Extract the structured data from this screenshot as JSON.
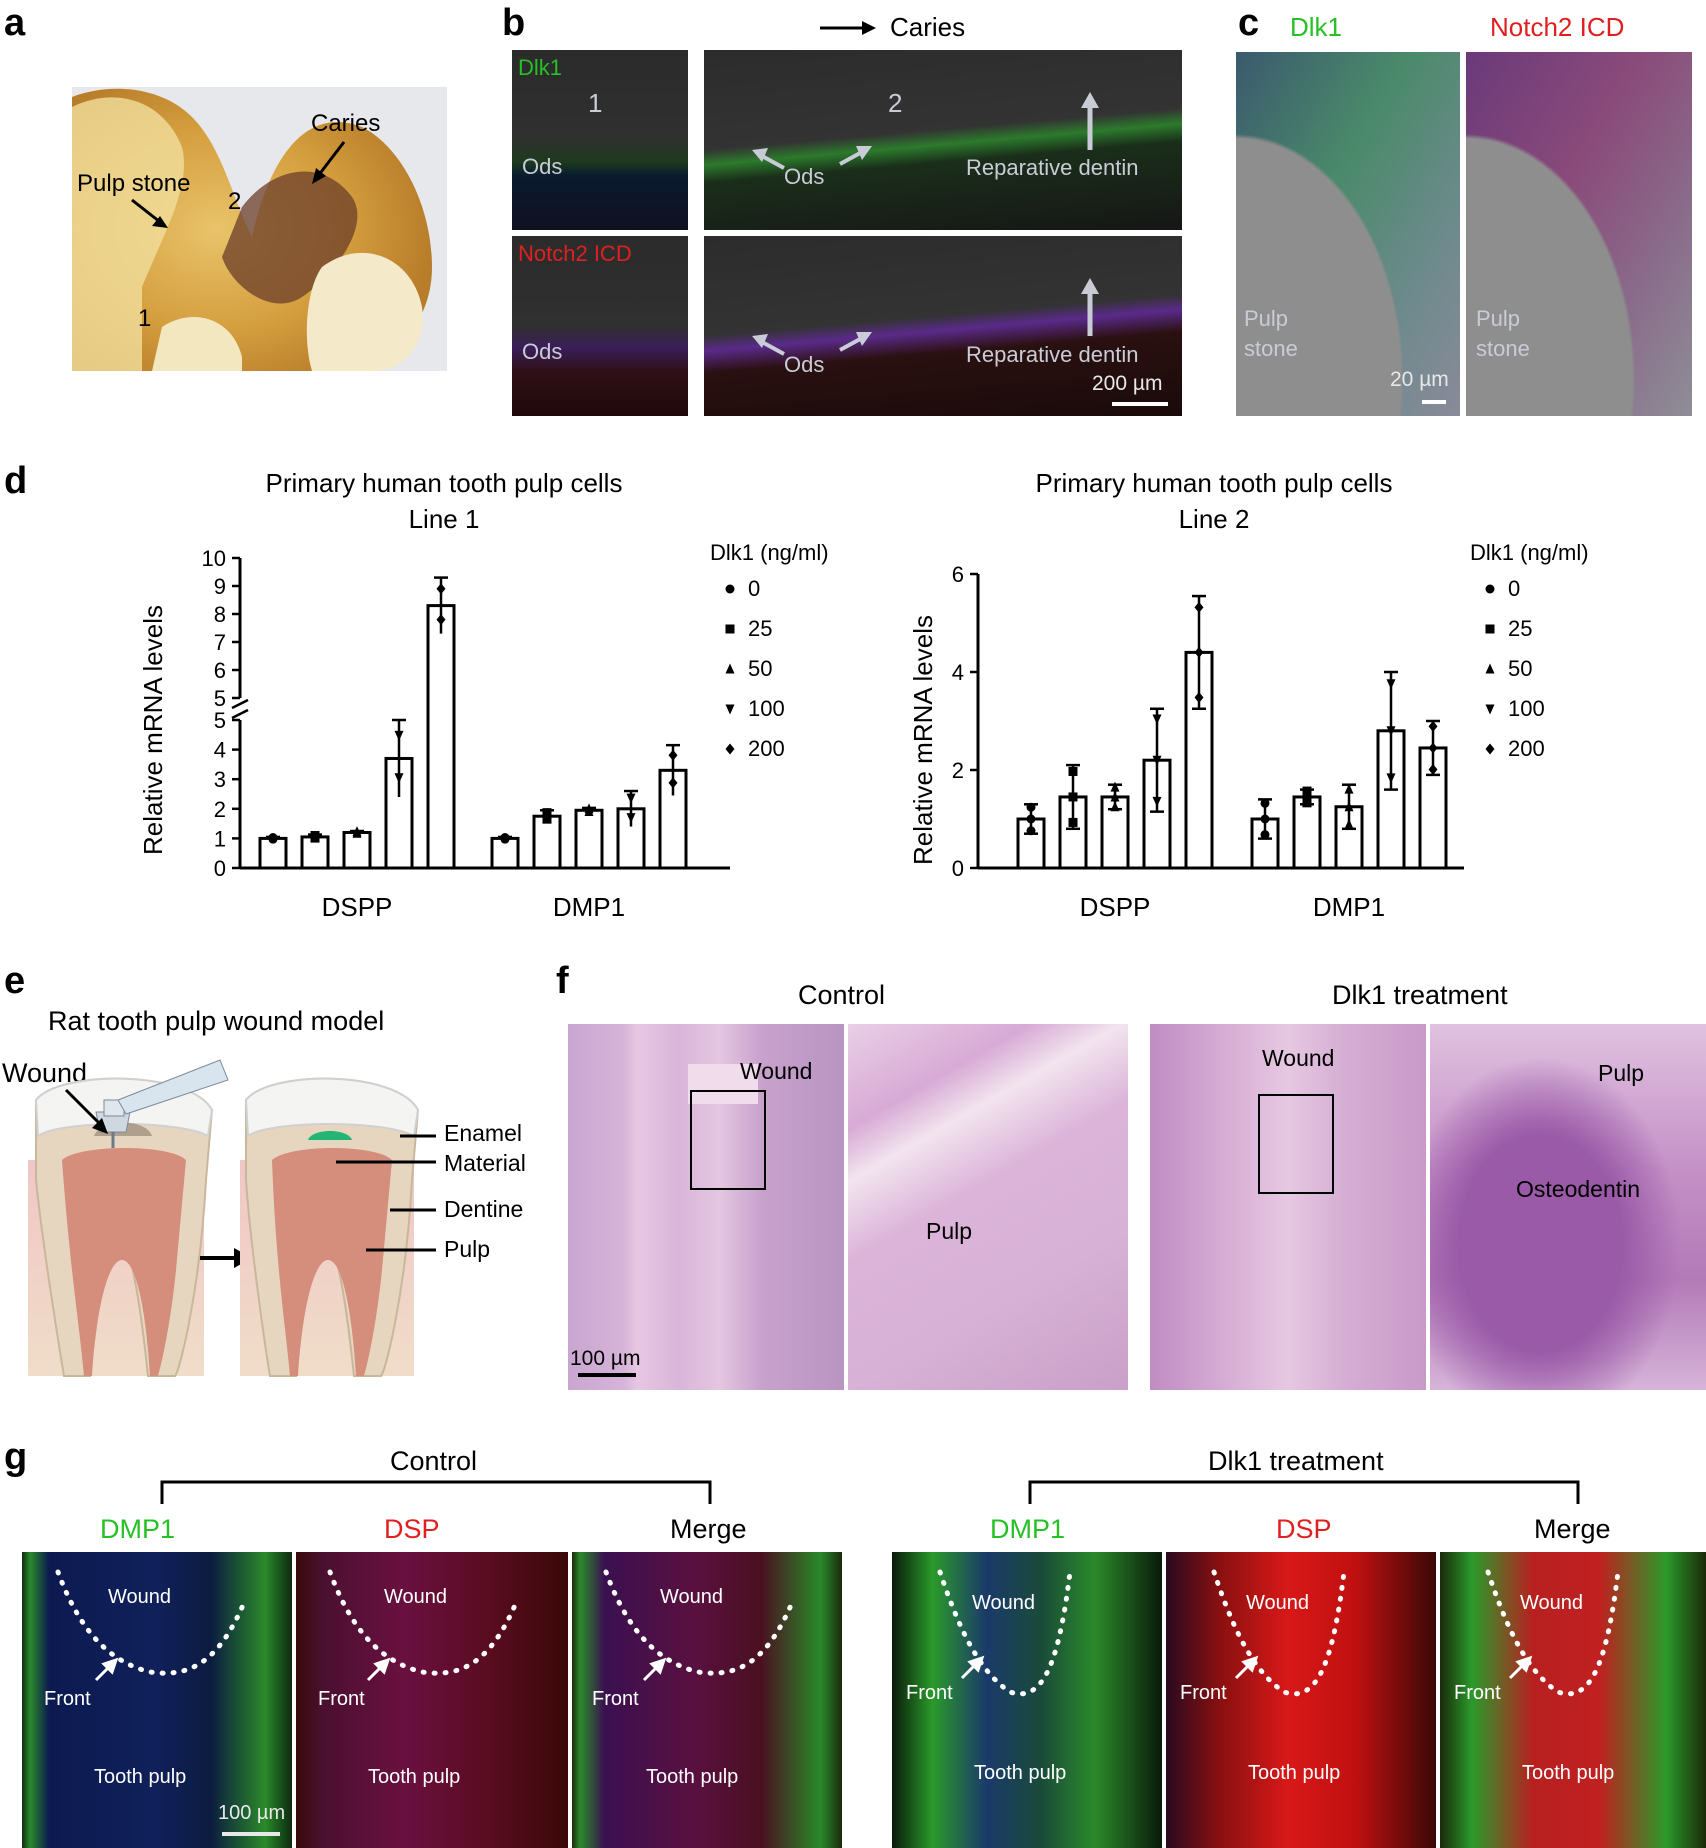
{
  "panel_labels": {
    "a": "a",
    "b": "b",
    "c": "c",
    "d": "d",
    "e": "e",
    "f": "f",
    "g": "g"
  },
  "panel_a": {
    "caries": "Caries",
    "pulp_stone": "Pulp stone",
    "num1": "1",
    "num2": "2"
  },
  "panel_b": {
    "header": "Caries",
    "dlk1": "Dlk1",
    "notch2": "Notch2 ICD",
    "num1": "1",
    "num2": "2",
    "ods": "Ods",
    "reparative": "Reparative dentin",
    "scale": "200 µm"
  },
  "panel_c": {
    "dlk1": "Dlk1",
    "notch2": "Notch2 ICD",
    "pulp": "Pulp",
    "stone": "stone",
    "scale": "20 µm"
  },
  "panel_d": {
    "ylabel": "Relative mRNA levels",
    "legend_title": "Dlk1 (ng/ml)",
    "legend": [
      "0",
      "25",
      "50",
      "100",
      "200"
    ]
  },
  "chart_data": [
    {
      "type": "bar",
      "title": "Primary human tooth pulp cells",
      "subtitle": "Line 1",
      "ylabel": "Relative mRNA levels",
      "axis_break": [
        5,
        5
      ],
      "ylim_lower": [
        0,
        5
      ],
      "ylim_upper": [
        5,
        10
      ],
      "yticks_lower": [
        "0",
        "1",
        "2",
        "3",
        "4",
        "5"
      ],
      "yticks_upper": [
        "5",
        "6",
        "7",
        "8",
        "9",
        "10"
      ],
      "categories": [
        "DSPP",
        "DMP1"
      ],
      "series": [
        {
          "name": "0",
          "values": [
            1.0,
            1.0
          ],
          "errors": [
            0.05,
            0.05
          ]
        },
        {
          "name": "25",
          "values": [
            1.05,
            1.75
          ],
          "errors": [
            0.08,
            0.2
          ]
        },
        {
          "name": "50",
          "values": [
            1.2,
            1.95
          ],
          "errors": [
            0.05,
            0.08
          ]
        },
        {
          "name": "100",
          "values": [
            3.7,
            2.0
          ],
          "errors": [
            1.3,
            0.6
          ]
        },
        {
          "name": "200",
          "values": [
            8.3,
            3.3
          ],
          "errors": [
            1.0,
            0.85
          ]
        }
      ]
    },
    {
      "type": "bar",
      "title": "Primary human tooth pulp cells",
      "subtitle": "Line 2",
      "ylabel": "Relative mRNA levels",
      "ylim": [
        0,
        6
      ],
      "yticks": [
        "0",
        "2",
        "4",
        "6"
      ],
      "categories": [
        "DSPP",
        "DMP1"
      ],
      "series": [
        {
          "name": "0",
          "values": [
            1.0,
            1.0
          ],
          "errors": [
            0.3,
            0.4
          ]
        },
        {
          "name": "25",
          "values": [
            1.45,
            1.45
          ],
          "errors": [
            0.65,
            0.15
          ]
        },
        {
          "name": "50",
          "values": [
            1.45,
            1.25
          ],
          "errors": [
            0.25,
            0.45
          ]
        },
        {
          "name": "100",
          "values": [
            2.2,
            2.8
          ],
          "errors": [
            1.05,
            1.2
          ]
        },
        {
          "name": "200",
          "values": [
            4.4,
            2.45
          ],
          "errors": [
            1.15,
            0.55
          ]
        }
      ]
    }
  ],
  "panel_e": {
    "title": "Rat tooth pulp wound model",
    "wound": "Wound",
    "enamel": "Enamel",
    "material": "Material",
    "dentine": "Dentine",
    "pulp": "Pulp"
  },
  "panel_f": {
    "control": "Control",
    "dlk1": "Dlk1 treatment",
    "wound": "Wound",
    "pulp": "Pulp",
    "osteodentin": "Osteodentin",
    "scale": "100 µm"
  },
  "panel_g": {
    "control": "Control",
    "dlk1": "Dlk1 treatment",
    "dmp1": "DMP1",
    "dsp": "DSP",
    "merge": "Merge",
    "wound": "Wound",
    "front": "Front",
    "tooth_pulp": "Tooth pulp",
    "scale": "100 µm"
  }
}
